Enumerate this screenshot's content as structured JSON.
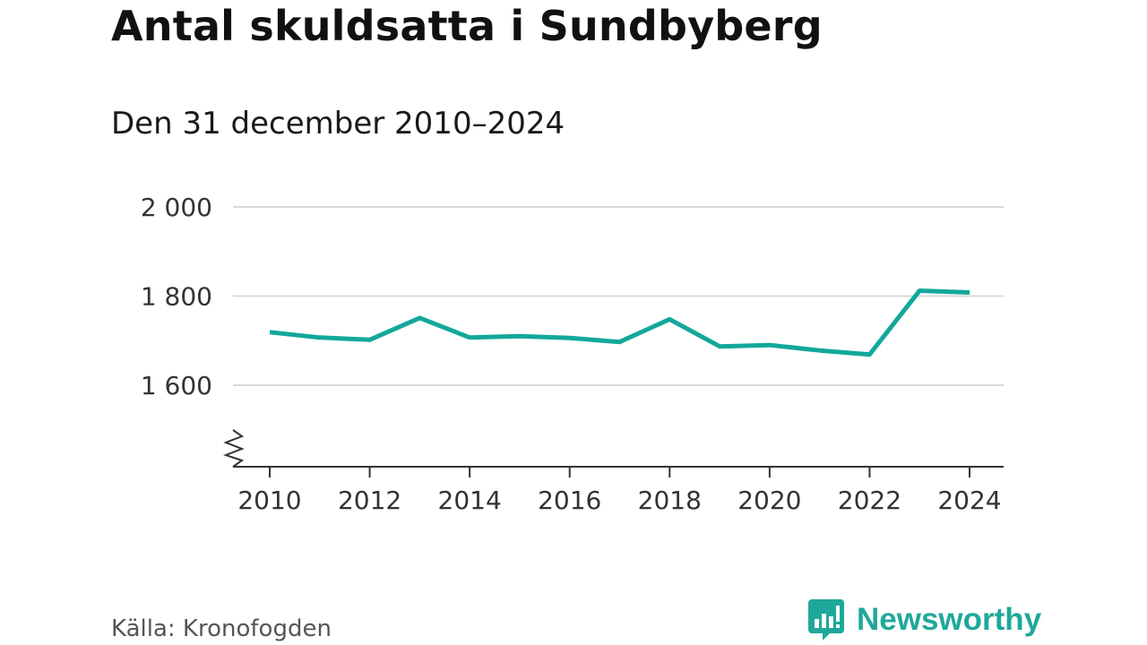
{
  "header": {
    "title": "Antal skuldsatta i Sundbyberg",
    "subtitle": "Den 31 december 2010–2024"
  },
  "footer": {
    "source": "Källa: Kronofogden",
    "brand": "Newsworthy"
  },
  "colors": {
    "line": "#12a89a",
    "grid": "#d9d9d9",
    "axis": "#333333",
    "brand": "#1fa89a"
  },
  "icons": {
    "brand": "newsworthy-logo-icon",
    "axis_break": "axis-break-icon"
  },
  "chart_data": {
    "type": "line",
    "title": "Antal skuldsatta i Sundbyberg",
    "subtitle": "Den 31 december 2010–2024",
    "xlabel": "",
    "ylabel": "",
    "x": [
      2010,
      2011,
      2012,
      2013,
      2014,
      2015,
      2016,
      2017,
      2018,
      2019,
      2020,
      2021,
      2022,
      2023,
      2024
    ],
    "series": [
      {
        "name": "Antal skuldsatta",
        "values": [
          1719,
          1707,
          1702,
          1751,
          1707,
          1710,
          1706,
          1697,
          1748,
          1687,
          1690,
          1678,
          1669,
          1812,
          1808
        ]
      }
    ],
    "ylim": [
      1420,
      2000
    ],
    "y_ticks": [
      1600,
      1800,
      2000
    ],
    "y_tick_labels": [
      "1 600",
      "1 800",
      "2 000"
    ],
    "x_ticks": [
      2010,
      2012,
      2014,
      2016,
      2018,
      2020,
      2022,
      2024
    ],
    "x_tick_labels": [
      "2010",
      "2012",
      "2014",
      "2016",
      "2018",
      "2020",
      "2022",
      "2024"
    ],
    "grid": true,
    "axis_break": true,
    "legend": "none"
  }
}
